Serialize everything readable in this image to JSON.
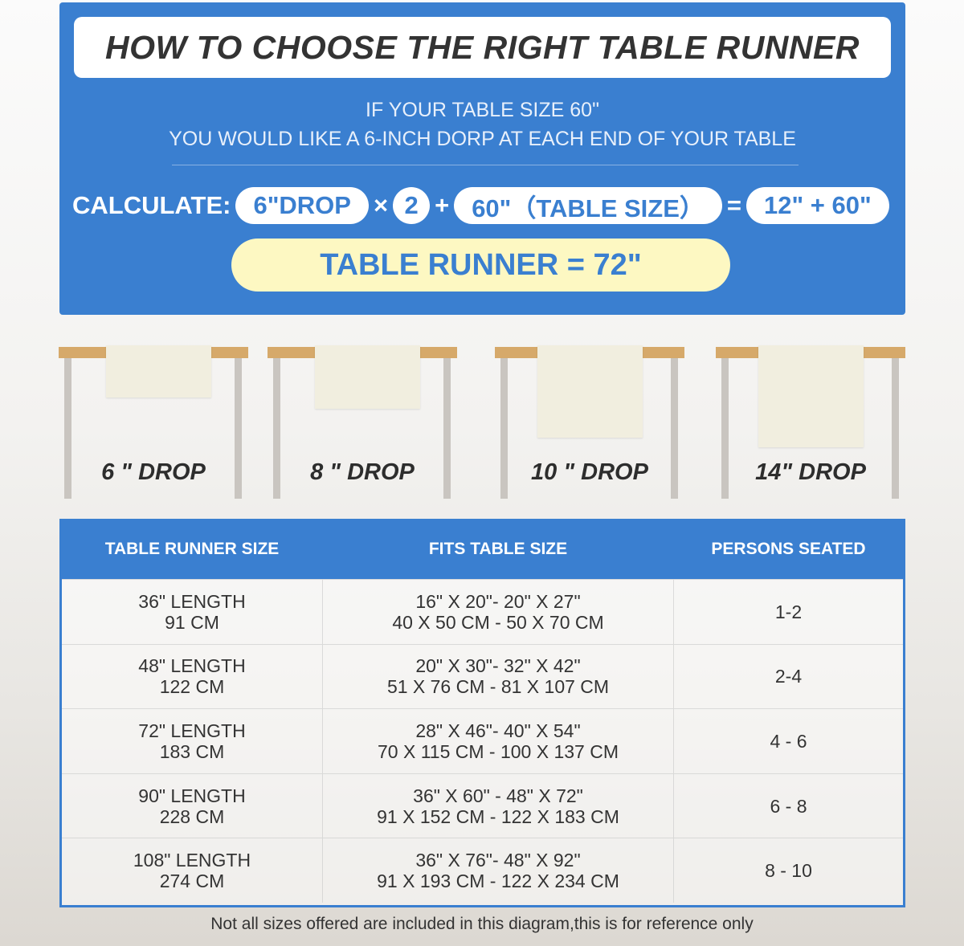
{
  "header": {
    "title": "HOW TO CHOOSE THE RIGHT TABLE RUNNER",
    "line1": "IF YOUR TABLE SIZE 60\"",
    "line2": "YOU WOULD LIKE A 6-INCH DORP AT EACH END OF YOUR TABLE"
  },
  "calc": {
    "label": "CALCULATE:",
    "drop": "6\"DROP",
    "times": "×",
    "multiplier": "2",
    "plus": "+",
    "table": "60\"（TABLE SIZE）",
    "equals": "=",
    "sum": "12\" + 60\"",
    "result": "TABLE RUNNER = 72\""
  },
  "drops": [
    {
      "label": "6 \" DROP"
    },
    {
      "label": "8 \" DROP"
    },
    {
      "label": "10 \" DROP"
    },
    {
      "label": "14\" DROP"
    }
  ],
  "table": {
    "headers": [
      "TABLE RUNNER SIZE",
      "FITS TABLE SIZE",
      "PERSONS SEATED"
    ],
    "rows": [
      {
        "size": [
          "36\" LENGTH",
          "91 CM"
        ],
        "fits": [
          "16\" X 20\"- 20\" X 27\"",
          "40 X 50 CM - 50 X 70 CM"
        ],
        "persons": "1-2"
      },
      {
        "size": [
          "48\" LENGTH",
          "122 CM"
        ],
        "fits": [
          "20\" X 30\"- 32\" X 42\"",
          "51 X 76 CM - 81 X 107 CM"
        ],
        "persons": "2-4"
      },
      {
        "size": [
          "72\" LENGTH",
          "183 CM"
        ],
        "fits": [
          "28\" X 46\"- 40\" X 54\"",
          "70 X 115 CM - 100 X 137 CM"
        ],
        "persons": "4 - 6"
      },
      {
        "size": [
          "90\" LENGTH",
          "228 CM"
        ],
        "fits": [
          "36\" X 60\" - 48\" X 72\"",
          "91 X 152 CM - 122 X 183 CM"
        ],
        "persons": "6 - 8"
      },
      {
        "size": [
          "108\" LENGTH",
          "274 CM"
        ],
        "fits": [
          "36\" X 76\"- 48\" X 92\"",
          "91 X 193 CM - 122 X 234 CM"
        ],
        "persons": "8 - 10"
      }
    ]
  },
  "note": "Not all sizes offered are included in this diagram,this is for reference only",
  "colors": {
    "accent": "#3a7fd0",
    "highlight": "#fdf8c2",
    "tabletop": "#d6a96a"
  }
}
